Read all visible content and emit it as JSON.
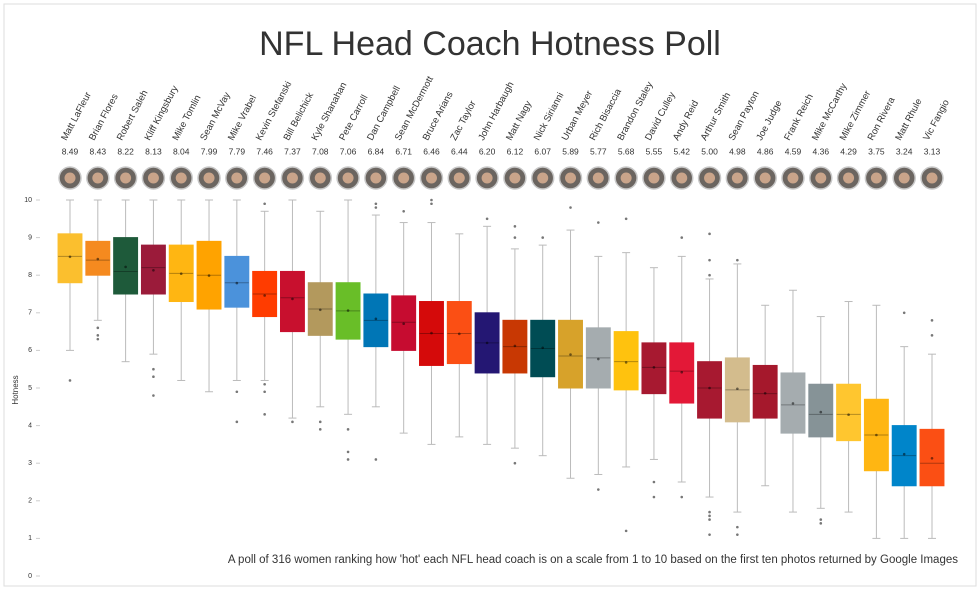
{
  "chart_data": {
    "type": "box",
    "title": "NFL Head Coach Hotness Poll",
    "ylabel": "Hotness",
    "note": "A poll of 316 women ranking how 'hot' each NFL head coach is on a scale from 1 to 10 based on the first ten photos returned by Google Images",
    "categories": [
      "Matt LaFleur",
      "Brian Flores",
      "Robert Saleh",
      "Kliff Kingsbury",
      "Mike Tomlin",
      "Sean McVay",
      "Mike Vrabel",
      "Kevin Stefanski",
      "Bill Belichick",
      "Kyle Shanahan",
      "Pete Carroll",
      "Dan Campbell",
      "Sean McDermott",
      "Bruce Arians",
      "Zac Taylor",
      "John Harbaugh",
      "Matt Nagy",
      "Nick Sirianni",
      "Urban Meyer",
      "Rich Bisaccia",
      "Brandon Staley",
      "David Culley",
      "Andy Reid",
      "Arthur Smith",
      "Sean Payton",
      "Joe Judge",
      "Frank Reich",
      "Mike McCarthy",
      "Mike Zimmer",
      "Ron Rivera",
      "Matt Rhule",
      "Vic Fangio"
    ],
    "values": [
      8.49,
      8.43,
      8.22,
      8.13,
      8.04,
      7.99,
      7.79,
      7.46,
      7.37,
      7.08,
      7.06,
      6.84,
      6.71,
      6.46,
      6.44,
      6.2,
      6.12,
      6.07,
      5.89,
      5.77,
      5.68,
      5.55,
      5.42,
      5.0,
      4.98,
      4.86,
      4.59,
      4.36,
      4.29,
      3.75,
      3.24,
      3.13
    ],
    "value_labels": [
      "8.49",
      "8.43",
      "8.22",
      "8.13",
      "8.04",
      "7.99",
      "7.79",
      "7.46",
      "7.37",
      "7.08",
      "7.06",
      "6.84",
      "6.71",
      "6.46",
      "6.44",
      "6.20",
      "6.12",
      "6.07",
      "5.89",
      "5.77",
      "5.68",
      "5.55",
      "5.42",
      "5.00",
      "4.98",
      "4.86",
      "4.59",
      "4.36",
      "4.29",
      "3.75",
      "3.24",
      "3.13"
    ],
    "colors": [
      "#fbbf2e",
      "#f58a1f",
      "#1e5a3a",
      "#9b1b3a",
      "#ffb612",
      "#ffa300",
      "#4b92db",
      "#ff3c00",
      "#c8102e",
      "#b3995d",
      "#69be28",
      "#0076b6",
      "#c60c30",
      "#d50a0a",
      "#fb4f14",
      "#241773",
      "#c83803",
      "#004c54",
      "#d7a22a",
      "#a5acaf",
      "#ffc20e",
      "#a71930",
      "#e31837",
      "#a71930",
      "#d3bc8d",
      "#a5182c",
      "#a5acaf",
      "#869397",
      "#ffc62f",
      "#ffb612",
      "#0085ca",
      "#fb4f14"
    ],
    "boxes": [
      {
        "whislo": 6.0,
        "q1": 7.8,
        "med": 8.5,
        "q3": 9.1,
        "whishi": 10,
        "fliers": [
          5.2
        ]
      },
      {
        "whislo": 6.8,
        "q1": 8.0,
        "med": 8.4,
        "q3": 8.9,
        "whishi": 10,
        "fliers": [
          6.6,
          6.4,
          6.3
        ]
      },
      {
        "whislo": 5.7,
        "q1": 7.5,
        "med": 8.1,
        "q3": 9.0,
        "whishi": 10,
        "fliers": []
      },
      {
        "whislo": 5.9,
        "q1": 7.5,
        "med": 8.2,
        "q3": 8.8,
        "whishi": 10,
        "fliers": [
          5.5,
          5.3,
          4.8
        ]
      },
      {
        "whislo": 5.2,
        "q1": 7.3,
        "med": 8.05,
        "q3": 8.8,
        "whishi": 10,
        "fliers": []
      },
      {
        "whislo": 4.9,
        "q1": 7.1,
        "med": 8.0,
        "q3": 8.9,
        "whishi": 10,
        "fliers": []
      },
      {
        "whislo": 5.2,
        "q1": 7.15,
        "med": 7.8,
        "q3": 8.5,
        "whishi": 10,
        "fliers": [
          4.9,
          4.1
        ]
      },
      {
        "whislo": 5.2,
        "q1": 6.9,
        "med": 7.5,
        "q3": 8.1,
        "whishi": 9.7,
        "fliers": [
          9.9,
          5.1,
          4.9,
          4.3
        ]
      },
      {
        "whislo": 4.2,
        "q1": 6.5,
        "med": 7.4,
        "q3": 8.1,
        "whishi": 10,
        "fliers": [
          4.1
        ]
      },
      {
        "whislo": 4.5,
        "q1": 6.4,
        "med": 7.1,
        "q3": 7.8,
        "whishi": 9.7,
        "fliers": [
          4.1,
          3.9
        ]
      },
      {
        "whislo": 4.3,
        "q1": 6.3,
        "med": 7.05,
        "q3": 7.8,
        "whishi": 10,
        "fliers": [
          3.9,
          3.3,
          3.1
        ]
      },
      {
        "whislo": 4.5,
        "q1": 6.1,
        "med": 6.8,
        "q3": 7.5,
        "whishi": 9.6,
        "fliers": [
          9.9,
          9.8,
          3.1
        ]
      },
      {
        "whislo": 3.8,
        "q1": 6.0,
        "med": 6.75,
        "q3": 7.45,
        "whishi": 9.4,
        "fliers": [
          9.7
        ]
      },
      {
        "whislo": 3.5,
        "q1": 5.6,
        "med": 6.45,
        "q3": 7.3,
        "whishi": 9.4,
        "fliers": [
          10,
          9.9
        ]
      },
      {
        "whislo": 3.7,
        "q1": 5.65,
        "med": 6.45,
        "q3": 7.3,
        "whishi": 9.1,
        "fliers": []
      },
      {
        "whislo": 3.5,
        "q1": 5.4,
        "med": 6.2,
        "q3": 7.0,
        "whishi": 9.3,
        "fliers": [
          9.5
        ]
      },
      {
        "whislo": 3.4,
        "q1": 5.4,
        "med": 6.1,
        "q3": 6.8,
        "whishi": 8.7,
        "fliers": [
          9.3,
          9.0,
          3.0
        ]
      },
      {
        "whislo": 3.2,
        "q1": 5.3,
        "med": 6.05,
        "q3": 6.8,
        "whishi": 8.8,
        "fliers": [
          9.0
        ]
      },
      {
        "whislo": 2.6,
        "q1": 5.0,
        "med": 5.85,
        "q3": 6.8,
        "whishi": 9.2,
        "fliers": [
          9.8
        ]
      },
      {
        "whislo": 2.7,
        "q1": 5.0,
        "med": 5.8,
        "q3": 6.6,
        "whishi": 8.5,
        "fliers": [
          9.4,
          2.3
        ]
      },
      {
        "whislo": 2.9,
        "q1": 4.95,
        "med": 5.7,
        "q3": 6.5,
        "whishi": 8.6,
        "fliers": [
          9.5,
          1.2
        ]
      },
      {
        "whislo": 3.1,
        "q1": 4.85,
        "med": 5.55,
        "q3": 6.2,
        "whishi": 8.2,
        "fliers": [
          2.5,
          2.1
        ]
      },
      {
        "whislo": 2.5,
        "q1": 4.6,
        "med": 5.45,
        "q3": 6.2,
        "whishi": 8.5,
        "fliers": [
          9.0,
          2.1
        ]
      },
      {
        "whislo": 2.1,
        "q1": 4.2,
        "med": 5.0,
        "q3": 5.7,
        "whishi": 7.9,
        "fliers": [
          9.1,
          8.4,
          8.0,
          1.7,
          1.6,
          1.5,
          1.1
        ]
      },
      {
        "whislo": 1.7,
        "q1": 4.1,
        "med": 4.95,
        "q3": 5.8,
        "whishi": 8.3,
        "fliers": [
          8.4,
          1.3,
          1.1
        ]
      },
      {
        "whislo": 2.4,
        "q1": 4.2,
        "med": 4.85,
        "q3": 5.6,
        "whishi": 7.2,
        "fliers": []
      },
      {
        "whislo": 1.7,
        "q1": 3.8,
        "med": 4.55,
        "q3": 5.4,
        "whishi": 7.6,
        "fliers": []
      },
      {
        "whislo": 1.8,
        "q1": 3.7,
        "med": 4.3,
        "q3": 5.1,
        "whishi": 6.9,
        "fliers": [
          1.5,
          1.4
        ]
      },
      {
        "whislo": 1.7,
        "q1": 3.6,
        "med": 4.3,
        "q3": 5.1,
        "whishi": 7.3,
        "fliers": []
      },
      {
        "whislo": 1.0,
        "q1": 2.8,
        "med": 3.75,
        "q3": 4.7,
        "whishi": 7.2,
        "fliers": []
      },
      {
        "whislo": 1.0,
        "q1": 2.4,
        "med": 3.2,
        "q3": 4.0,
        "whishi": 6.1,
        "fliers": [
          7.0
        ]
      },
      {
        "whislo": 1.0,
        "q1": 2.4,
        "med": 3.0,
        "q3": 3.9,
        "whishi": 5.9,
        "fliers": [
          6.8,
          6.4
        ]
      }
    ],
    "ylim": [
      0,
      10
    ],
    "yticks": [
      0,
      1,
      2,
      3,
      4,
      5,
      6,
      7,
      8,
      9,
      10
    ],
    "grid": false
  }
}
